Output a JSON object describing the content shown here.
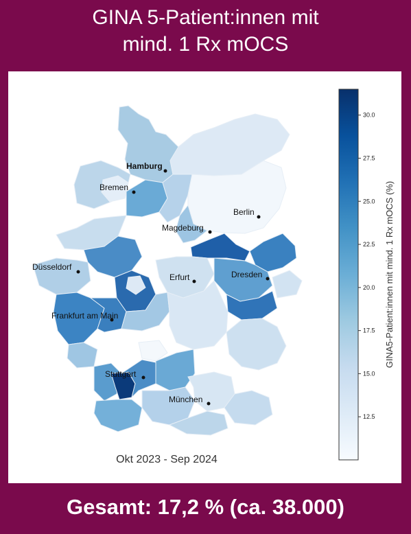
{
  "header": {
    "title_line1": "GINA 5-Patient:innen mit",
    "title_line2": "mind. 1 Rx mOCS"
  },
  "map": {
    "period_label": "Okt 2023 - Sep 2024",
    "cities": [
      {
        "name": "Hamburg"
      },
      {
        "name": "Bremen"
      },
      {
        "name": "Berlin"
      },
      {
        "name": "Magdeburg"
      },
      {
        "name": "Düsseldorf"
      },
      {
        "name": "Erfurt"
      },
      {
        "name": "Dresden"
      },
      {
        "name": "Frankfurt am Main"
      },
      {
        "name": "Stuttgart"
      },
      {
        "name": "München"
      }
    ]
  },
  "colorbar": {
    "label": "GINA5-Patient:innen mit mind. 1 Rx mOCS (%)",
    "range": [
      10,
      31.5
    ],
    "ticks": [
      "12.5",
      "15.0",
      "17.5",
      "20.0",
      "22.5",
      "25.0",
      "27.5",
      "30.0"
    ],
    "colormap": [
      "#f7fbff",
      "#deebf7",
      "#c6dbef",
      "#9ecae1",
      "#6baed6",
      "#4292c6",
      "#2171b5",
      "#08519c",
      "#08306b"
    ]
  },
  "footer": {
    "total_label": "Gesamt: 17,2 % (ca. 38.000)"
  }
}
